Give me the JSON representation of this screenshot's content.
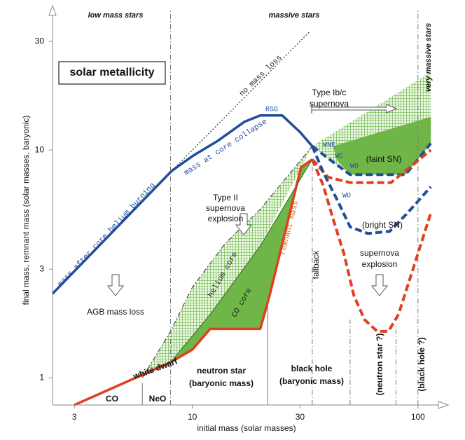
{
  "chart_data": {
    "type": "line",
    "x_label": "initial mass (solar masses)",
    "y_label": "final mass, remnant mass (solar masses, baryonic)",
    "log_x": true,
    "log_y": true,
    "xlim": [
      2.4,
      118
    ],
    "ylim": [
      0.76,
      41
    ],
    "xticks": [
      3,
      10,
      30,
      100
    ],
    "yticks": [
      1,
      3,
      10,
      30
    ],
    "areas": [
      {
        "fill": "hatch",
        "color": "#7cc25a",
        "x": [
          6,
          8,
          10,
          14,
          20,
          34,
          20,
          12,
          8
        ],
        "y": [
          1,
          1.6,
          2.5,
          3.9,
          5.5,
          10.4,
          3.8,
          1.9,
          1.17
        ]
      },
      {
        "fill": "solid",
        "color": "#6fb548",
        "x": [
          8,
          12,
          20,
          34,
          30.3,
          22,
          20,
          12,
          10
        ],
        "y": [
          1.17,
          1.9,
          3.8,
          9.1,
          8.4,
          2.3,
          1.64,
          1.64,
          1.33
        ]
      },
      {
        "fill": "hatch",
        "color": "#7cc25a",
        "x": [
          34,
          114,
          114,
          88,
          50,
          40
        ],
        "y": [
          10.4,
          22,
          10.7,
          7.8,
          7.8,
          9.2
        ]
      },
      {
        "fill": "solid",
        "color": "#6fb548",
        "x": [
          42,
          114,
          114,
          88,
          50,
          44
        ],
        "y": [
          10.4,
          14,
          10.7,
          7.8,
          7.8,
          9
        ]
      }
    ],
    "series": [
      {
        "name": "mass after core helium burning",
        "color": "#1f4e9c",
        "style": "solid",
        "x": [
          2.4,
          8.1
        ],
        "y": [
          2.34,
          8.1
        ]
      },
      {
        "name": "mass at core collapse",
        "color": "#1f4e9c",
        "style": "solid",
        "x": [
          8.1,
          10,
          13,
          17,
          20,
          25,
          30,
          34
        ],
        "y": [
          8.1,
          9.4,
          11,
          13.3,
          14.2,
          14.2,
          12,
          10.4
        ]
      },
      {
        "color": "#1f4e9c",
        "style": "dashed",
        "x": [
          34,
          40,
          50,
          70,
          88,
          114
        ],
        "y": [
          10.4,
          9.2,
          7.8,
          7.8,
          7.8,
          10.7
        ]
      },
      {
        "color": "#e0401f",
        "style": "dashed",
        "x": [
          34,
          40,
          50,
          60,
          76,
          114
        ],
        "y": [
          9.1,
          7.6,
          7.2,
          7.2,
          7.2,
          10
        ]
      },
      {
        "color": "#1f4e9c",
        "style": "dashed",
        "x": [
          34,
          38,
          44,
          50,
          60,
          75,
          90,
          114
        ],
        "y": [
          10.4,
          8,
          6,
          4.6,
          4.3,
          4.4,
          5.3,
          6.9
        ]
      },
      {
        "color": "#e0401f",
        "style": "dashed",
        "x": [
          34,
          38,
          42,
          47,
          52,
          58,
          66,
          74,
          82,
          95,
          114
        ],
        "y": [
          9.1,
          7,
          5,
          3.5,
          2.3,
          1.8,
          1.6,
          1.6,
          1.9,
          3,
          5.3
        ]
      },
      {
        "name": "remnant mass",
        "color": "#e0401f",
        "style": "solid",
        "x": [
          3,
          8,
          10,
          12,
          20,
          22,
          30.3,
          34
        ],
        "y": [
          0.76,
          1.17,
          1.33,
          1.64,
          1.64,
          2.3,
          8.4,
          9.1
        ]
      },
      {
        "name": "no mass loss",
        "color": "#333333",
        "style": "dotted",
        "x": [
          8,
          33
        ],
        "y": [
          8,
          33
        ]
      },
      {
        "name": "helium core",
        "color": "#333333",
        "style": "dashdot",
        "x": [
          6,
          8,
          10,
          14,
          20,
          34
        ],
        "y": [
          1,
          1.6,
          2.5,
          3.9,
          5.5,
          10.4
        ]
      },
      {
        "name": "CO core",
        "color": "#2e6b1e",
        "style": "thin",
        "x": [
          8,
          12,
          20,
          34
        ],
        "y": [
          1.17,
          1.9,
          3.8,
          9.1
        ]
      },
      {
        "color": "#777777",
        "style": "thin",
        "x": [
          6,
          6
        ],
        "y": [
          0.76,
          0.95
        ]
      },
      {
        "color": "#777777",
        "style": "dashdot",
        "x": [
          8,
          8
        ],
        "y": [
          0.76,
          41
        ]
      },
      {
        "color": "#777777",
        "style": "thin",
        "x": [
          21.6,
          21.6
        ],
        "y": [
          0.76,
          2.3
        ]
      },
      {
        "color": "#777777",
        "style": "dashdot",
        "x": [
          34,
          34
        ],
        "y": [
          0.76,
          9.1
        ]
      },
      {
        "color": "#777777",
        "style": "dashdot",
        "x": [
          50,
          50
        ],
        "y": [
          0.76,
          1.8
        ]
      },
      {
        "color": "#777777",
        "style": "dashdot",
        "x": [
          80,
          80
        ],
        "y": [
          0.76,
          1.7
        ]
      },
      {
        "color": "#777777",
        "style": "dashdot",
        "x": [
          100,
          100
        ],
        "y": [
          0.76,
          41
        ]
      }
    ],
    "annotations": [
      "low mass stars",
      "massive stars",
      "very massive stars",
      "solar metallicity",
      "RSG",
      "Type Ib/c",
      "supernova",
      "WNE",
      "WC",
      "WO",
      "(faint SN)",
      "Type II",
      "supernova",
      "explosion",
      "WO",
      "(bright SN)",
      "supernova",
      "explosion",
      "fallback",
      "AGB mass loss",
      "white dwarf",
      "CO",
      "NeO",
      "neutron star",
      "(baryonic mass)",
      "black hole",
      "(baryonic mass)",
      "(neutron star ?)",
      "(black hole ?)"
    ]
  }
}
